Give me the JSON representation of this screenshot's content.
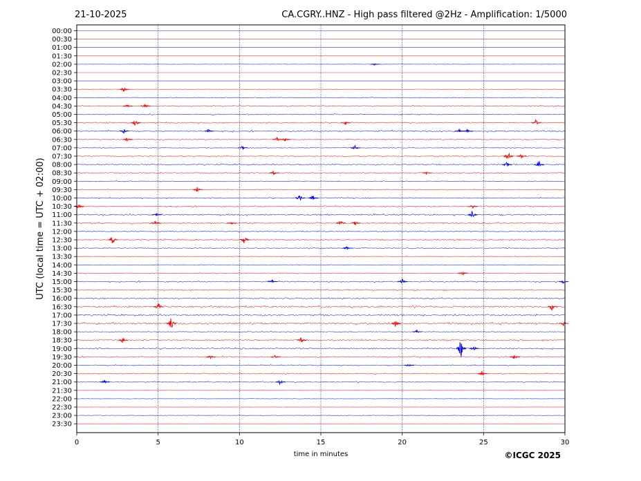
{
  "header": {
    "date": "21-10-2025",
    "title": "CA.CGRY..HNZ - High pass filtered @2Hz - Amplification: 1/5000"
  },
  "footer": {
    "copyright": "©ICGC 2025"
  },
  "chart_data": {
    "type": "line",
    "title": "CA.CGRY..HNZ - High pass filtered @2Hz - Amplification: 1/5000",
    "xlabel": "time in minutes",
    "ylabel": "UTC (local time = UTC + 02:00)",
    "xlim": [
      0,
      30
    ],
    "x_ticks": [
      "0",
      "5",
      "10",
      "15",
      "20",
      "25",
      "30"
    ],
    "grid": "vertical dotted lines at 5-minute intervals",
    "trace_colors": [
      "#0000ff",
      "#ff0000"
    ],
    "rows": [
      "00:00",
      "00:30",
      "01:00",
      "01:30",
      "02:00",
      "02:30",
      "03:00",
      "03:30",
      "04:00",
      "04:30",
      "05:00",
      "05:30",
      "06:00",
      "06:30",
      "07:00",
      "07:30",
      "08:00",
      "08:30",
      "09:00",
      "09:30",
      "10:00",
      "10:30",
      "11:00",
      "11:30",
      "12:00",
      "12:30",
      "13:00",
      "13:30",
      "14:00",
      "14:30",
      "15:00",
      "15:30",
      "16:00",
      "16:30",
      "17:00",
      "17:30",
      "18:00",
      "18:30",
      "19:00",
      "19:30",
      "20:00",
      "20:30",
      "21:00",
      "21:30",
      "22:00",
      "22:30",
      "23:00",
      "23:30"
    ],
    "noise_level": [
      0,
      0,
      0,
      0,
      0.3,
      0,
      0,
      0.5,
      0.8,
      1.2,
      1.0,
      1.3,
      1.5,
      1.0,
      0.8,
      1.0,
      1.2,
      1.0,
      0.8,
      0.9,
      1.2,
      1.3,
      1.5,
      1.5,
      1.0,
      1.2,
      1.0,
      0.6,
      0.5,
      0.9,
      1.2,
      1.1,
      1.2,
      1.8,
      1.4,
      1.8,
      0.7,
      1.4,
      1.4,
      1.2,
      1.0,
      1.1,
      1.0,
      0.2,
      0.4,
      0.2,
      0.5,
      0.1
    ],
    "events": [
      {
        "row": "02:00",
        "t": 18.3,
        "amp": 0.2
      },
      {
        "row": "03:30",
        "t": 2.9,
        "amp": 0.6
      },
      {
        "row": "04:30",
        "t": 4.2,
        "amp": 0.5
      },
      {
        "row": "04:30",
        "t": 3.1,
        "amp": 0.4
      },
      {
        "row": "05:30",
        "t": 3.6,
        "amp": 0.9
      },
      {
        "row": "05:30",
        "t": 16.5,
        "amp": 0.4
      },
      {
        "row": "05:30",
        "t": 28.2,
        "amp": 0.7
      },
      {
        "row": "06:00",
        "t": 2.9,
        "amp": 0.5
      },
      {
        "row": "06:00",
        "t": 8.1,
        "amp": 0.5
      },
      {
        "row": "06:00",
        "t": 23.5,
        "amp": 0.4
      },
      {
        "row": "06:00",
        "t": 24.0,
        "amp": 0.4
      },
      {
        "row": "06:30",
        "t": 3.1,
        "amp": 0.5
      },
      {
        "row": "06:30",
        "t": 12.3,
        "amp": 0.5
      },
      {
        "row": "06:30",
        "t": 12.8,
        "amp": 0.5
      },
      {
        "row": "07:00",
        "t": 10.2,
        "amp": 0.5
      },
      {
        "row": "07:00",
        "t": 17.1,
        "amp": 0.6
      },
      {
        "row": "07:30",
        "t": 26.5,
        "amp": 1.4
      },
      {
        "row": "07:30",
        "t": 27.3,
        "amp": 0.6
      },
      {
        "row": "08:00",
        "t": 26.4,
        "amp": 0.8
      },
      {
        "row": "08:00",
        "t": 28.4,
        "amp": 0.9
      },
      {
        "row": "08:30",
        "t": 12.1,
        "amp": 0.4
      },
      {
        "row": "08:30",
        "t": 21.5,
        "amp": 0.3
      },
      {
        "row": "09:30",
        "t": 7.4,
        "amp": 0.7
      },
      {
        "row": "10:00",
        "t": 13.7,
        "amp": 0.8
      },
      {
        "row": "10:00",
        "t": 14.5,
        "amp": 0.7
      },
      {
        "row": "10:30",
        "t": 0.1,
        "amp": 0.6
      },
      {
        "row": "10:30",
        "t": 24.3,
        "amp": 0.5
      },
      {
        "row": "11:00",
        "t": 24.3,
        "amp": 0.9
      },
      {
        "row": "11:00",
        "t": 4.9,
        "amp": 0.3
      },
      {
        "row": "11:30",
        "t": 16.2,
        "amp": 0.6
      },
      {
        "row": "11:30",
        "t": 17.1,
        "amp": 0.6
      },
      {
        "row": "11:30",
        "t": 9.5,
        "amp": 0.4
      },
      {
        "row": "11:30",
        "t": 4.8,
        "amp": 0.4
      },
      {
        "row": "12:30",
        "t": 2.2,
        "amp": 1.0
      },
      {
        "row": "12:30",
        "t": 10.3,
        "amp": 1.0
      },
      {
        "row": "13:00",
        "t": 16.6,
        "amp": 0.4
      },
      {
        "row": "14:30",
        "t": 23.7,
        "amp": 0.6
      },
      {
        "row": "15:00",
        "t": 20.0,
        "amp": 0.6
      },
      {
        "row": "15:00",
        "t": 12.0,
        "amp": 0.4
      },
      {
        "row": "15:00",
        "t": 29.9,
        "amp": 0.4
      },
      {
        "row": "16:30",
        "t": 5.0,
        "amp": 0.9
      },
      {
        "row": "16:30",
        "t": 29.2,
        "amp": 0.8
      },
      {
        "row": "17:30",
        "t": 5.8,
        "amp": 1.6
      },
      {
        "row": "17:30",
        "t": 19.6,
        "amp": 1.1
      },
      {
        "row": "17:30",
        "t": 29.9,
        "amp": 0.5
      },
      {
        "row": "18:00",
        "t": 20.9,
        "amp": 0.4
      },
      {
        "row": "18:30",
        "t": 2.8,
        "amp": 0.6
      },
      {
        "row": "18:30",
        "t": 13.8,
        "amp": 0.7
      },
      {
        "row": "19:00",
        "t": 23.6,
        "amp": 2.2
      },
      {
        "row": "19:00",
        "t": 24.4,
        "amp": 0.6
      },
      {
        "row": "19:30",
        "t": 8.2,
        "amp": 0.5
      },
      {
        "row": "19:30",
        "t": 26.9,
        "amp": 0.6
      },
      {
        "row": "19:30",
        "t": 12.2,
        "amp": 0.4
      },
      {
        "row": "20:00",
        "t": 20.4,
        "amp": 0.3
      },
      {
        "row": "20:30",
        "t": 24.9,
        "amp": 0.5
      },
      {
        "row": "21:00",
        "t": 12.5,
        "amp": 0.6
      },
      {
        "row": "21:00",
        "t": 1.7,
        "amp": 0.4
      }
    ]
  }
}
